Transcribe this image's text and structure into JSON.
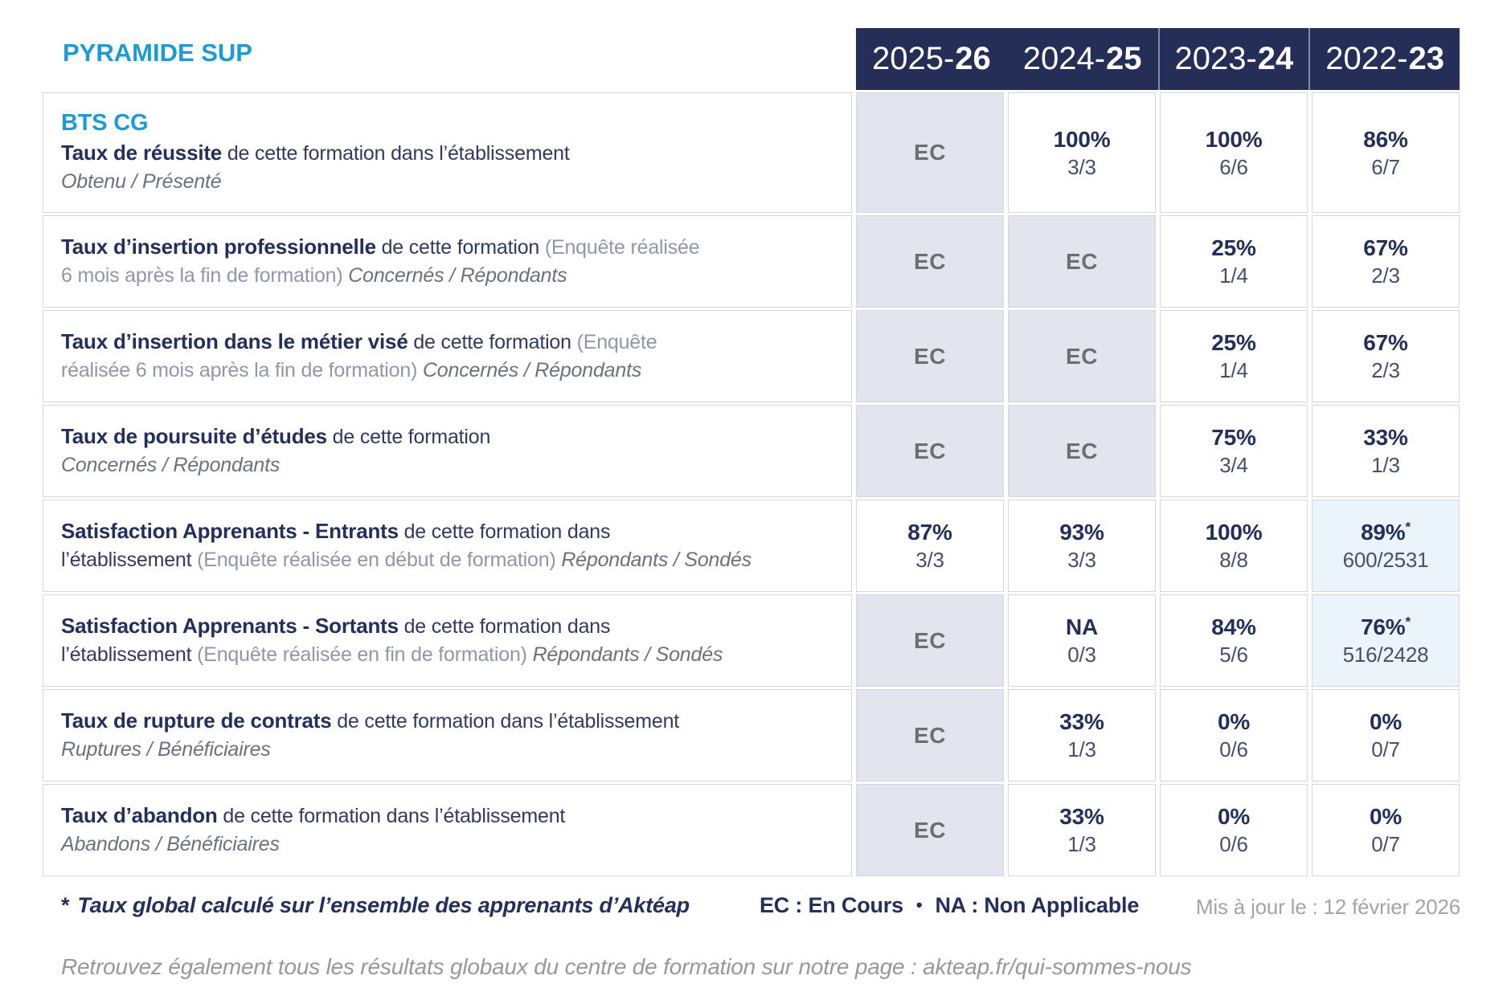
{
  "brand": {
    "title": "PYRAMIDE SUP"
  },
  "colors": {
    "accent_blue": "#1d9bd7",
    "header_navy": "#242e56",
    "value_navy": "#232f5c",
    "ec_cell_bg": "#e4e4ee",
    "highlight_cell_bg": "#ecf4fb"
  },
  "header": {
    "years": [
      {
        "prefix": "2025-",
        "bold": "26"
      },
      {
        "prefix": "2024-",
        "bold": "25"
      },
      {
        "prefix": "2023-",
        "bold": "24"
      },
      {
        "prefix": "2022-",
        "bold": "23"
      }
    ]
  },
  "table": {
    "rows": [
      {
        "program": "BTS CG",
        "lines": [
          [
            {
              "s": "b",
              "t": "Taux de réussite"
            },
            {
              "s": "d",
              "t": " de cette formation dans l’établissement"
            }
          ],
          [
            {
              "s": "i",
              "t": "Obtenu / Présenté"
            }
          ]
        ],
        "cells": [
          {
            "label": "EC"
          },
          {
            "pct": "100%",
            "frac": "3/3"
          },
          {
            "pct": "100%",
            "frac": "6/6"
          },
          {
            "pct": "86%",
            "frac": "6/7"
          }
        ]
      },
      {
        "lines": [
          [
            {
              "s": "b",
              "t": "Taux d’insertion professionnelle"
            },
            {
              "s": "d",
              "t": " de cette formation "
            },
            {
              "s": "p",
              "t": "(Enquête réalisée"
            }
          ],
          [
            {
              "s": "p",
              "t": "6 mois après la fin de formation) "
            },
            {
              "s": "i",
              "t": "Concernés / Répondants"
            }
          ]
        ],
        "cells": [
          {
            "label": "EC"
          },
          {
            "label": "EC"
          },
          {
            "pct": "25%",
            "frac": "1/4"
          },
          {
            "pct": "67%",
            "frac": "2/3"
          }
        ]
      },
      {
        "lines": [
          [
            {
              "s": "b",
              "t": "Taux d’insertion dans le métier visé"
            },
            {
              "s": "d",
              "t": " de cette formation "
            },
            {
              "s": "p",
              "t": "(Enquête"
            }
          ],
          [
            {
              "s": "p",
              "t": "réalisée 6 mois après la fin de formation) "
            },
            {
              "s": "i",
              "t": "Concernés / Répondants"
            }
          ]
        ],
        "cells": [
          {
            "label": "EC"
          },
          {
            "label": "EC"
          },
          {
            "pct": "25%",
            "frac": "1/4"
          },
          {
            "pct": "67%",
            "frac": "2/3"
          }
        ]
      },
      {
        "lines": [
          [
            {
              "s": "b",
              "t": "Taux de poursuite d’études"
            },
            {
              "s": "d",
              "t": " de cette formation"
            }
          ],
          [
            {
              "s": "i",
              "t": "Concernés / Répondants"
            }
          ]
        ],
        "cells": [
          {
            "label": "EC"
          },
          {
            "label": "EC"
          },
          {
            "pct": "75%",
            "frac": "3/4"
          },
          {
            "pct": "33%",
            "frac": "1/3"
          }
        ]
      },
      {
        "lines": [
          [
            {
              "s": "b",
              "t": "Satisfaction Apprenants - Entrants"
            },
            {
              "s": "d",
              "t": " de cette formation dans"
            }
          ],
          [
            {
              "s": "d",
              "t": "l’établissement "
            },
            {
              "s": "p",
              "t": "(Enquête réalisée en début de formation) "
            },
            {
              "s": "i",
              "t": "Répondants / Sondés"
            }
          ]
        ],
        "cells": [
          {
            "pct": "87%",
            "frac": "3/3"
          },
          {
            "pct": "93%",
            "frac": "3/3"
          },
          {
            "pct": "100%",
            "frac": "8/8"
          },
          {
            "pct": "89%",
            "frac": "600/2531",
            "star": "*",
            "hl": true
          }
        ]
      },
      {
        "lines": [
          [
            {
              "s": "b",
              "t": "Satisfaction Apprenants - Sortants"
            },
            {
              "s": "d",
              "t": " de cette formation dans"
            }
          ],
          [
            {
              "s": "d",
              "t": "l’établissement "
            },
            {
              "s": "p",
              "t": "(Enquête réalisée en fin de formation) "
            },
            {
              "s": "i",
              "t": "Répondants / Sondés"
            }
          ]
        ],
        "cells": [
          {
            "label": "EC"
          },
          {
            "pct": "NA",
            "frac": "0/3"
          },
          {
            "pct": "84%",
            "frac": "5/6"
          },
          {
            "pct": "76%",
            "frac": "516/2428",
            "star": "*",
            "hl": true
          }
        ]
      },
      {
        "lines": [
          [
            {
              "s": "b",
              "t": "Taux de rupture de contrats"
            },
            {
              "s": "d",
              "t": " de cette formation dans l’établissement"
            }
          ],
          [
            {
              "s": "i",
              "t": "Ruptures / Bénéficiaires"
            }
          ]
        ],
        "cells": [
          {
            "label": "EC"
          },
          {
            "pct": "33%",
            "frac": "1/3"
          },
          {
            "pct": "0%",
            "frac": "0/6"
          },
          {
            "pct": "0%",
            "frac": "0/7"
          }
        ]
      },
      {
        "lines": [
          [
            {
              "s": "b",
              "t": "Taux d’abandon"
            },
            {
              "s": "d",
              "t": " de cette formation dans l’établissement"
            }
          ],
          [
            {
              "s": "i",
              "t": "Abandons / Bénéficiaires"
            }
          ]
        ],
        "cells": [
          {
            "label": "EC"
          },
          {
            "pct": "33%",
            "frac": "1/3"
          },
          {
            "pct": "0%",
            "frac": "0/6"
          },
          {
            "pct": "0%",
            "frac": "0/7"
          }
        ]
      }
    ]
  },
  "footer": {
    "footnote": {
      "marker": "*",
      "text": "Taux global calculé sur l’ensemble des apprenants d’Aktéap"
    },
    "legend": {
      "ec": "EC : En Cours",
      "separator": "•",
      "na": "NA : Non Applicable"
    },
    "updated": "Mis à jour le : 12 février 2026",
    "bottom_note": "Retrouvez également tous les résultats globaux du centre de formation sur notre page : akteap.fr/qui-sommes-nous"
  }
}
